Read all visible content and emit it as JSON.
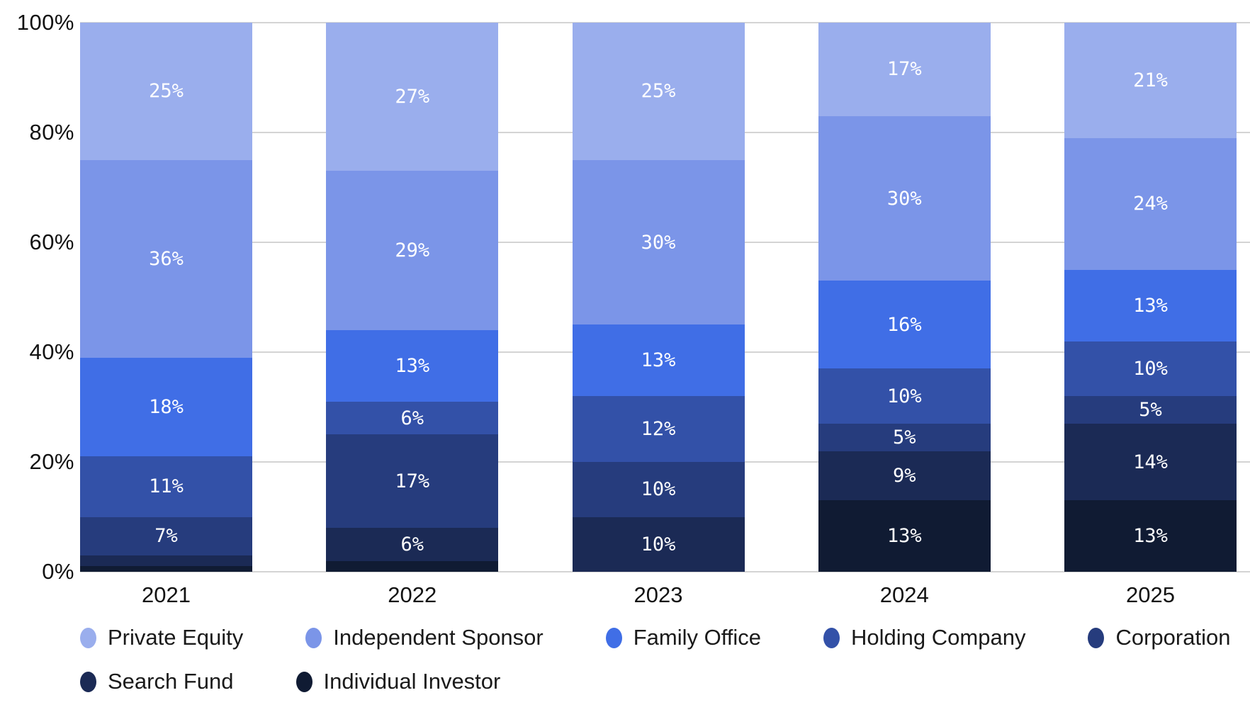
{
  "chart_data": {
    "type": "bar",
    "stacked": true,
    "units": "percent",
    "stack_order": "top-to-bottom",
    "categories": [
      "2021",
      "2022",
      "2023",
      "2024",
      "2025"
    ],
    "series": [
      {
        "name": "Private Equity",
        "color": "#9AAEED",
        "values": [
          25,
          27,
          25,
          17,
          21
        ]
      },
      {
        "name": "Independent Sponsor",
        "color": "#7B95E8",
        "values": [
          36,
          29,
          30,
          30,
          24
        ]
      },
      {
        "name": "Family Office",
        "color": "#406EE6",
        "values": [
          18,
          13,
          13,
          16,
          13
        ]
      },
      {
        "name": "Holding Company",
        "color": "#3351A8",
        "values": [
          11,
          6,
          12,
          10,
          10
        ]
      },
      {
        "name": "Corporation",
        "color": "#263C7D",
        "values": [
          7,
          17,
          10,
          5,
          5
        ]
      },
      {
        "name": "Search Fund",
        "color": "#1B2A55",
        "values": [
          2,
          6,
          10,
          9,
          14
        ]
      },
      {
        "name": "Individual Investor",
        "color": "#101B33",
        "values": [
          1,
          2,
          0,
          13,
          13
        ]
      }
    ],
    "title": "",
    "xlabel": "",
    "ylabel": "",
    "y_axis": {
      "min": 0,
      "max": 100,
      "ticks": [
        "0%",
        "20%",
        "40%",
        "60%",
        "80%",
        "100%"
      ],
      "tick_values": [
        0,
        20,
        40,
        60,
        80,
        100
      ]
    },
    "grid": true,
    "gridline_color": "#D4D4D4",
    "value_label_format": "{value}%",
    "value_label_min_shown": 5,
    "value_label_color": "#FFFFFF",
    "legend_position": "bottom",
    "legend_rows": [
      [
        "Private Equity",
        "Independent Sponsor",
        "Family Office",
        "Holding Company",
        "Corporation"
      ],
      [
        "Search Fund",
        "Individual Investor"
      ]
    ]
  }
}
